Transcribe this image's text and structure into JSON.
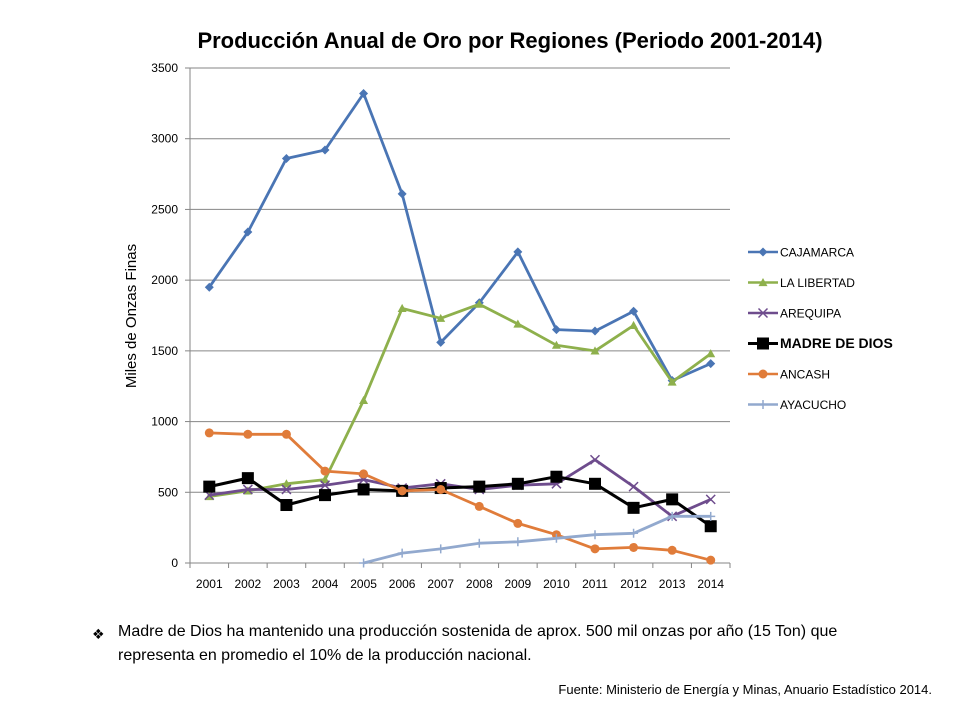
{
  "chart_data": {
    "type": "line",
    "title": "Producción Anual de Oro por Regiones (Periodo 2001-2014)",
    "ylabel": "Miles de Onzas Finas",
    "xlabel": "",
    "ylim": [
      0,
      3500
    ],
    "yticks": [
      "0",
      "500",
      "1000",
      "1500",
      "2000",
      "2500",
      "3000",
      "3500"
    ],
    "categories": [
      "2001",
      "2002",
      "2003",
      "2004",
      "2005",
      "2006",
      "2007",
      "2008",
      "2009",
      "2010",
      "2011",
      "2012",
      "2013",
      "2014"
    ],
    "grid": "horizontal",
    "legend": "right",
    "series": [
      {
        "name": "CAJAMARCA",
        "color": "#4A75B4",
        "marker": "diamond",
        "values": [
          1950,
          2340,
          2860,
          2920,
          3320,
          2610,
          1560,
          1840,
          2200,
          1650,
          1640,
          1780,
          1290,
          1410
        ]
      },
      {
        "name": "LA LIBERTAD",
        "color": "#8EB04C",
        "marker": "triangle",
        "values": [
          470,
          510,
          560,
          590,
          1150,
          1800,
          1730,
          1830,
          1690,
          1540,
          1500,
          1680,
          1280,
          1480
        ]
      },
      {
        "name": "AREQUIPA",
        "color": "#6E4C8D",
        "marker": "x",
        "values": [
          480,
          520,
          520,
          550,
          590,
          530,
          560,
          520,
          550,
          560,
          730,
          540,
          330,
          450
        ]
      },
      {
        "name": "MADRE DE DIOS",
        "color": "#000000",
        "marker": "square",
        "values": [
          540,
          600,
          410,
          480,
          520,
          510,
          530,
          540,
          560,
          610,
          560,
          390,
          450,
          260
        ]
      },
      {
        "name": "ANCASH",
        "color": "#E07C3A",
        "marker": "circle",
        "values": [
          920,
          910,
          910,
          650,
          630,
          510,
          520,
          400,
          280,
          200,
          100,
          110,
          90,
          20
        ]
      },
      {
        "name": "AYACUCHO",
        "color": "#92A9CE",
        "marker": "plus",
        "values": [
          null,
          null,
          null,
          null,
          0,
          70,
          100,
          140,
          150,
          175,
          200,
          210,
          330,
          330
        ]
      }
    ]
  },
  "note": {
    "bullet": "❖",
    "text": "Madre de Dios ha mantenido una producción sostenida  de aprox. 500 mil onzas por año (15 Ton) que representa  en promedio el 10% de la producción nacional."
  },
  "source": "Fuente: Ministerio de Energía y Minas, Anuario Estadístico 2014."
}
